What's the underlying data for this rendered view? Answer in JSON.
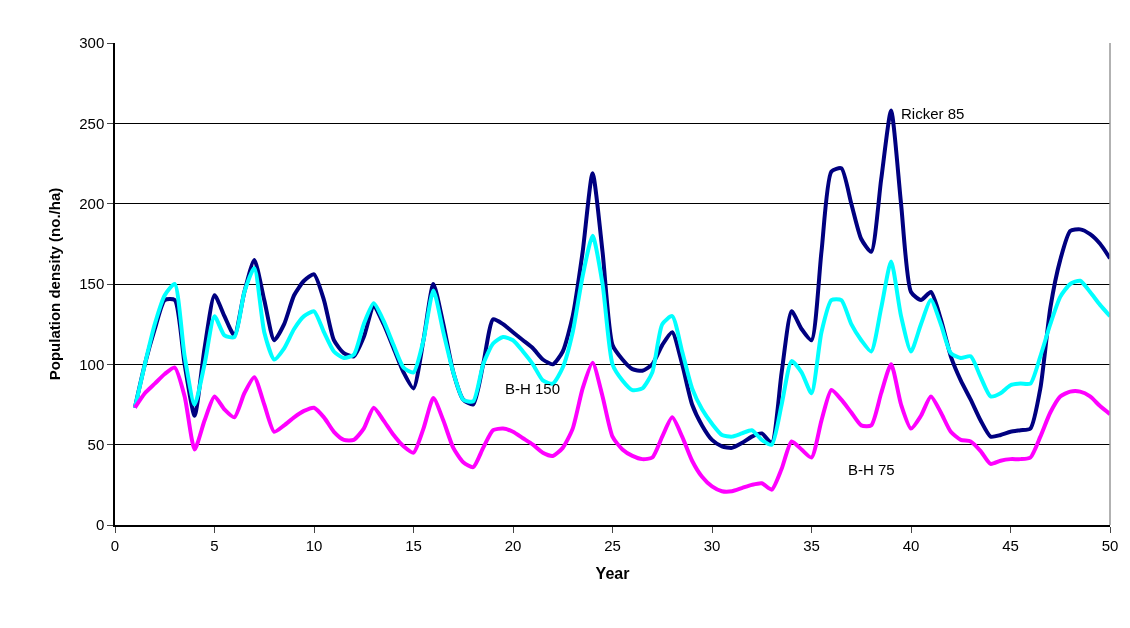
{
  "chart_data": {
    "type": "line",
    "xlabel": "Year",
    "ylabel": "Population density (no./ha)",
    "x": [
      1,
      1.5,
      2,
      2.5,
      3,
      3.5,
      4,
      4.5,
      5,
      5.5,
      6,
      6.5,
      7,
      7.5,
      8,
      8.5,
      9,
      9.5,
      10,
      10.5,
      11,
      11.5,
      12,
      12.5,
      13,
      13.5,
      14,
      14.5,
      15,
      15.5,
      16,
      16.5,
      17,
      17.5,
      18,
      18.5,
      19,
      19.5,
      20,
      20.5,
      21,
      21.5,
      22,
      22.5,
      23,
      23.5,
      24,
      24.5,
      25,
      25.5,
      26,
      26.5,
      27,
      27.5,
      28,
      28.5,
      29,
      29.5,
      30,
      30.5,
      31,
      31.5,
      32,
      32.5,
      33,
      33.5,
      34,
      34.5,
      35,
      35.5,
      36,
      36.5,
      37,
      37.5,
      38,
      38.5,
      39,
      39.5,
      40,
      40.5,
      41,
      41.5,
      42,
      42.5,
      43,
      43.5,
      44,
      44.5,
      45,
      45.5,
      46,
      46.5,
      47,
      47.5,
      48,
      48.5,
      49,
      49.5,
      50
    ],
    "series": [
      {
        "name": "Ricker 85",
        "color": "#000080",
        "values": [
          73,
          100,
          122,
          140,
          140,
          100,
          68,
          110,
          143,
          130,
          118,
          145,
          165,
          140,
          115,
          125,
          143,
          152,
          156,
          140,
          115,
          107,
          105,
          117,
          136,
          125,
          110,
          95,
          85,
          115,
          150,
          125,
          95,
          78,
          75,
          100,
          128,
          125,
          120,
          115,
          110,
          103,
          100,
          108,
          130,
          170,
          219,
          170,
          112,
          103,
          97,
          96,
          100,
          112,
          120,
          100,
          75,
          62,
          53,
          49,
          48,
          51,
          55,
          57,
          51,
          95,
          133,
          122,
          115,
          170,
          220,
          222,
          200,
          178,
          170,
          215,
          258,
          200,
          145,
          140,
          145,
          128,
          105,
          90,
          78,
          65,
          55,
          56,
          58,
          59,
          60,
          85,
          135,
          165,
          183,
          184,
          181,
          175,
          166
        ]
      },
      {
        "name": "B-H 150",
        "color": "#00ffff",
        "values": [
          73,
          100,
          125,
          143,
          150,
          105,
          75,
          100,
          130,
          118,
          117,
          145,
          160,
          120,
          103,
          110,
          122,
          130,
          133,
          120,
          108,
          104,
          106,
          125,
          138,
          127,
          112,
          98,
          95,
          115,
          146,
          120,
          95,
          78,
          77,
          100,
          113,
          117,
          115,
          108,
          100,
          90,
          88,
          98,
          120,
          155,
          180,
          150,
          100,
          90,
          84,
          85,
          95,
          125,
          130,
          108,
          85,
          72,
          63,
          56,
          55,
          57,
          59,
          53,
          50,
          75,
          102,
          95,
          82,
          120,
          140,
          140,
          125,
          115,
          108,
          135,
          164,
          130,
          108,
          125,
          140,
          125,
          107,
          104,
          105,
          92,
          80,
          82,
          87,
          88,
          88,
          105,
          125,
          142,
          150,
          152,
          145,
          137,
          130
        ]
      },
      {
        "name": "B-H 75",
        "color": "#ff00ff",
        "values": [
          73,
          82,
          88,
          94,
          98,
          80,
          47,
          65,
          80,
          72,
          67,
          82,
          92,
          75,
          58,
          62,
          67,
          71,
          73,
          67,
          58,
          53,
          53,
          60,
          73,
          65,
          56,
          49,
          45,
          60,
          79,
          65,
          48,
          39,
          36,
          48,
          59,
          60,
          58,
          54,
          50,
          45,
          43,
          48,
          60,
          85,
          101,
          80,
          55,
          47,
          43,
          41,
          42,
          55,
          67,
          55,
          40,
          30,
          24,
          21,
          21,
          23,
          25,
          26,
          22,
          35,
          52,
          47,
          42,
          65,
          84,
          78,
          70,
          62,
          62,
          82,
          100,
          75,
          60,
          68,
          80,
          70,
          58,
          53,
          52,
          46,
          38,
          40,
          41,
          41,
          42,
          55,
          70,
          80,
          83,
          83,
          80,
          74,
          69
        ]
      }
    ],
    "xlim": [
      0,
      50
    ],
    "xticks": [
      0,
      5,
      10,
      15,
      20,
      25,
      30,
      35,
      40,
      45,
      50
    ],
    "ylim": [
      0,
      300
    ],
    "yticks": [
      0,
      50,
      100,
      150,
      200,
      250,
      300
    ],
    "grid": "y",
    "legend": false,
    "marker": "none",
    "line_style": "solid"
  }
}
